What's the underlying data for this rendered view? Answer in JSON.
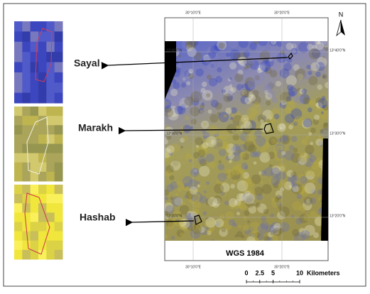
{
  "sites": [
    "Sayal",
    "Marakh",
    "Hashab"
  ],
  "map": {
    "north": "N",
    "lon_labels": [
      "30°10'0\"E",
      "30°20'0\"E"
    ],
    "lat_labels": [
      "13°40'0\"N",
      "13°30'0\"N",
      "13°20'0\"N"
    ],
    "datum": "WGS 1984"
  },
  "scale_bar": {
    "ticks": [
      0,
      2.5,
      5,
      10
    ],
    "unit": "Kilometers"
  }
}
